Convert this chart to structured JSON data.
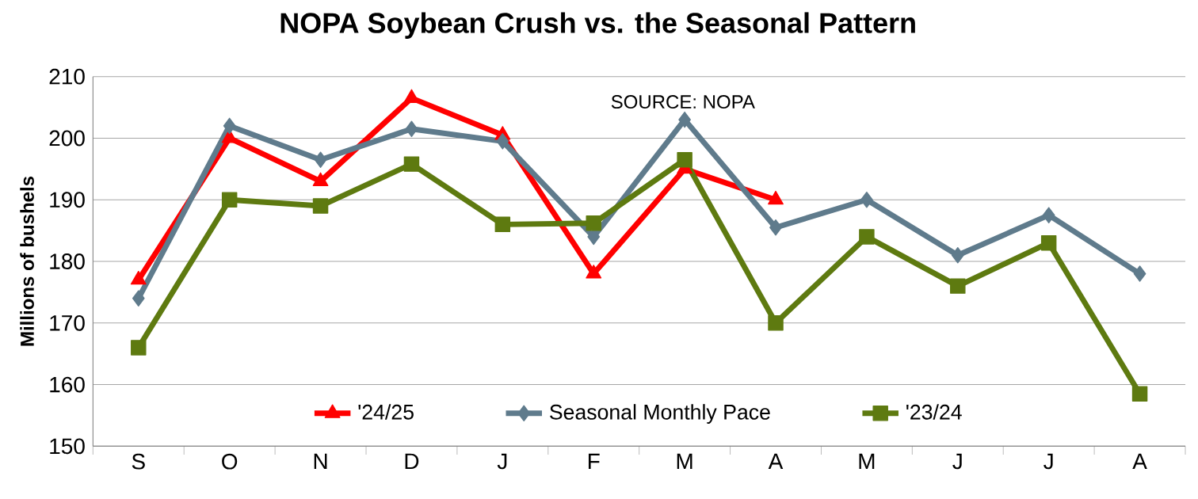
{
  "chart_data": {
    "type": "line",
    "title": "NOPA Soybean Crush vs. the Seasonal Pattern",
    "ylabel": "Millions of  bushels",
    "annotations": [
      "SOURCE: NOPA"
    ],
    "categories": [
      "S",
      "O",
      "N",
      "D",
      "J",
      "F",
      "M",
      "A",
      "M",
      "J",
      "J",
      "A"
    ],
    "series": [
      {
        "name": "'24/25",
        "color": "#ff0000",
        "marker": "triangle",
        "values": [
          177,
          200,
          193,
          206.5,
          200.5,
          178,
          195,
          190,
          null,
          null,
          null,
          null
        ]
      },
      {
        "name": "Seasonal Monthly Pace",
        "color": "#5f7b8c",
        "marker": "diamond",
        "values": [
          174,
          202,
          196.5,
          201.5,
          199.5,
          184,
          203,
          185.5,
          190,
          181,
          187.5,
          178
        ]
      },
      {
        "name": "'23/24",
        "color": "#5e7a10",
        "marker": "square",
        "values": [
          166,
          190,
          189,
          195.8,
          186,
          186.2,
          196.5,
          170,
          184,
          176,
          183,
          158.5
        ]
      }
    ],
    "ylim": [
      150,
      210
    ],
    "yticks": [
      150,
      160,
      170,
      180,
      190,
      200,
      210
    ],
    "grid": "y",
    "legend": "bottom",
    "line_style": "solid"
  }
}
